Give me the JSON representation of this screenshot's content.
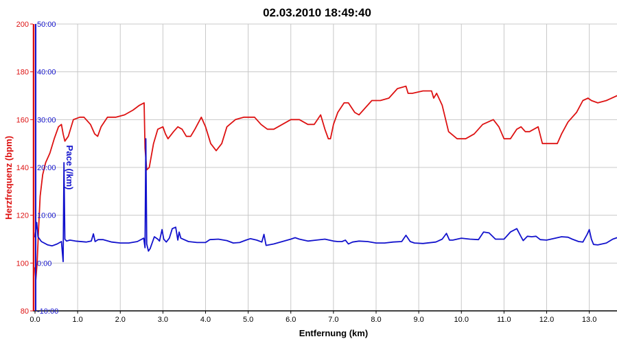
{
  "colors": {
    "heart_rate": "#dd1111",
    "pace": "#1111cc",
    "grid": "#c8c8c8",
    "axis": "#000000",
    "background": "#ffffff"
  },
  "chart_data": {
    "type": "line",
    "title": "02.03.2010 18:49:40",
    "xlabel": "Entfernung (km)",
    "xlim": [
      0,
      13.65
    ],
    "x_ticks": [
      "0.0",
      "1.0",
      "2.0",
      "3.0",
      "4.0",
      "5.0",
      "6.0",
      "7.0",
      "8.0",
      "9.0",
      "10.0",
      "11.0",
      "12.0",
      "13.0"
    ],
    "grid": true,
    "y_axes": [
      {
        "id": "hr",
        "label": "Herzfrequenz (bpm)",
        "lim": [
          80,
          200
        ],
        "ticks": [
          "200",
          "180",
          "160",
          "140",
          "120",
          "100",
          "80"
        ],
        "color": "#dd1111"
      },
      {
        "id": "pace",
        "label": "Pace (/km)",
        "lim": [
          -10,
          50
        ],
        "ticks": [
          "50:00",
          "40:00",
          "30:00",
          "20:00",
          "10:00",
          "0:00",
          "-10:00"
        ],
        "color": "#1111cc"
      }
    ],
    "series": [
      {
        "name": "Herzfrequenz (bpm)",
        "axis": "hr",
        "color": "#dd1111",
        "points": [
          [
            0.0,
            98
          ],
          [
            0.02,
            93
          ],
          [
            0.05,
            100
          ],
          [
            0.08,
            113
          ],
          [
            0.12,
            128
          ],
          [
            0.18,
            137
          ],
          [
            0.25,
            142
          ],
          [
            0.35,
            146
          ],
          [
            0.45,
            152
          ],
          [
            0.55,
            157
          ],
          [
            0.62,
            158
          ],
          [
            0.66,
            154
          ],
          [
            0.7,
            151
          ],
          [
            0.78,
            153
          ],
          [
            0.9,
            160
          ],
          [
            1.05,
            161
          ],
          [
            1.15,
            161
          ],
          [
            1.3,
            158
          ],
          [
            1.4,
            154
          ],
          [
            1.47,
            153
          ],
          [
            1.55,
            157
          ],
          [
            1.7,
            161
          ],
          [
            1.9,
            161
          ],
          [
            2.1,
            162
          ],
          [
            2.3,
            164
          ],
          [
            2.45,
            166
          ],
          [
            2.56,
            167
          ],
          [
            2.58,
            148
          ],
          [
            2.62,
            139
          ],
          [
            2.68,
            140
          ],
          [
            2.78,
            150
          ],
          [
            2.88,
            156
          ],
          [
            3.0,
            157
          ],
          [
            3.06,
            154
          ],
          [
            3.12,
            152
          ],
          [
            3.25,
            155
          ],
          [
            3.35,
            157
          ],
          [
            3.45,
            156
          ],
          [
            3.55,
            153
          ],
          [
            3.65,
            153
          ],
          [
            3.75,
            156
          ],
          [
            3.9,
            161
          ],
          [
            4.0,
            157
          ],
          [
            4.12,
            150
          ],
          [
            4.25,
            147
          ],
          [
            4.38,
            150
          ],
          [
            4.5,
            157
          ],
          [
            4.7,
            160
          ],
          [
            4.9,
            161
          ],
          [
            5.15,
            161
          ],
          [
            5.3,
            158
          ],
          [
            5.45,
            156
          ],
          [
            5.6,
            156
          ],
          [
            5.8,
            158
          ],
          [
            6.0,
            160
          ],
          [
            6.2,
            160
          ],
          [
            6.4,
            158
          ],
          [
            6.55,
            158
          ],
          [
            6.7,
            162
          ],
          [
            6.8,
            156
          ],
          [
            6.88,
            152
          ],
          [
            6.93,
            152
          ],
          [
            7.0,
            158
          ],
          [
            7.1,
            163
          ],
          [
            7.25,
            167
          ],
          [
            7.35,
            167
          ],
          [
            7.5,
            163
          ],
          [
            7.6,
            162
          ],
          [
            7.75,
            165
          ],
          [
            7.9,
            168
          ],
          [
            8.1,
            168
          ],
          [
            8.3,
            169
          ],
          [
            8.5,
            173
          ],
          [
            8.7,
            174
          ],
          [
            8.75,
            171
          ],
          [
            8.85,
            171
          ],
          [
            9.1,
            172
          ],
          [
            9.3,
            172
          ],
          [
            9.35,
            169
          ],
          [
            9.42,
            171
          ],
          [
            9.55,
            166
          ],
          [
            9.7,
            155
          ],
          [
            9.9,
            152
          ],
          [
            10.1,
            152
          ],
          [
            10.3,
            154
          ],
          [
            10.5,
            158
          ],
          [
            10.75,
            160
          ],
          [
            10.88,
            157
          ],
          [
            11.0,
            152
          ],
          [
            11.15,
            152
          ],
          [
            11.3,
            156
          ],
          [
            11.4,
            157
          ],
          [
            11.5,
            155
          ],
          [
            11.6,
            155
          ],
          [
            11.8,
            157
          ],
          [
            11.9,
            150
          ],
          [
            12.1,
            150
          ],
          [
            12.25,
            150
          ],
          [
            12.35,
            154
          ],
          [
            12.5,
            159
          ],
          [
            12.7,
            163
          ],
          [
            12.85,
            168
          ],
          [
            12.97,
            169
          ],
          [
            13.05,
            168
          ],
          [
            13.2,
            167
          ],
          [
            13.4,
            168
          ],
          [
            13.65,
            170
          ]
        ]
      },
      {
        "name": "Pace (/km)",
        "axis": "pace",
        "color": "#1111cc",
        "points": [
          [
            0.0,
            5.5
          ],
          [
            0.04,
            8.5
          ],
          [
            0.07,
            5.5
          ],
          [
            0.15,
            4.5
          ],
          [
            0.3,
            3.8
          ],
          [
            0.4,
            3.6
          ],
          [
            0.52,
            4.0
          ],
          [
            0.62,
            4.5
          ],
          [
            0.66,
            0.3
          ],
          [
            0.68,
            21
          ],
          [
            0.7,
            5
          ],
          [
            0.74,
            4.6
          ],
          [
            0.82,
            4.8
          ],
          [
            0.95,
            4.6
          ],
          [
            1.2,
            4.4
          ],
          [
            1.32,
            4.6
          ],
          [
            1.37,
            6.1
          ],
          [
            1.41,
            4.5
          ],
          [
            1.48,
            4.9
          ],
          [
            1.6,
            4.9
          ],
          [
            1.8,
            4.4
          ],
          [
            2.0,
            4.2
          ],
          [
            2.2,
            4.2
          ],
          [
            2.4,
            4.5
          ],
          [
            2.55,
            5.2
          ],
          [
            2.58,
            3.2
          ],
          [
            2.6,
            26
          ],
          [
            2.62,
            4
          ],
          [
            2.66,
            2.5
          ],
          [
            2.7,
            3.0
          ],
          [
            2.8,
            5.5
          ],
          [
            2.88,
            5.0
          ],
          [
            2.92,
            4.6
          ],
          [
            2.98,
            7.0
          ],
          [
            3.02,
            5.0
          ],
          [
            3.08,
            4.4
          ],
          [
            3.15,
            5.2
          ],
          [
            3.22,
            7.2
          ],
          [
            3.3,
            7.5
          ],
          [
            3.35,
            4.8
          ],
          [
            3.38,
            6.5
          ],
          [
            3.42,
            5.2
          ],
          [
            3.6,
            4.5
          ],
          [
            3.8,
            4.3
          ],
          [
            4.0,
            4.3
          ],
          [
            4.1,
            4.9
          ],
          [
            4.3,
            5.0
          ],
          [
            4.5,
            4.7
          ],
          [
            4.65,
            4.2
          ],
          [
            4.8,
            4.3
          ],
          [
            4.95,
            4.8
          ],
          [
            5.05,
            5.1
          ],
          [
            5.2,
            4.8
          ],
          [
            5.32,
            4.4
          ],
          [
            5.37,
            6.0
          ],
          [
            5.42,
            3.7
          ],
          [
            5.6,
            4.0
          ],
          [
            5.8,
            4.5
          ],
          [
            6.0,
            5.0
          ],
          [
            6.1,
            5.3
          ],
          [
            6.2,
            5.0
          ],
          [
            6.4,
            4.6
          ],
          [
            6.6,
            4.8
          ],
          [
            6.8,
            5.0
          ],
          [
            7.0,
            4.6
          ],
          [
            7.1,
            4.5
          ],
          [
            7.2,
            4.5
          ],
          [
            7.28,
            4.8
          ],
          [
            7.35,
            4.0
          ],
          [
            7.45,
            4.4
          ],
          [
            7.6,
            4.6
          ],
          [
            7.8,
            4.5
          ],
          [
            8.0,
            4.2
          ],
          [
            8.2,
            4.2
          ],
          [
            8.4,
            4.4
          ],
          [
            8.6,
            4.5
          ],
          [
            8.7,
            5.8
          ],
          [
            8.8,
            4.5
          ],
          [
            8.9,
            4.2
          ],
          [
            9.1,
            4.1
          ],
          [
            9.4,
            4.4
          ],
          [
            9.55,
            5.0
          ],
          [
            9.65,
            6.2
          ],
          [
            9.72,
            4.8
          ],
          [
            9.8,
            4.8
          ],
          [
            10.0,
            5.2
          ],
          [
            10.2,
            5.0
          ],
          [
            10.4,
            4.9
          ],
          [
            10.52,
            6.5
          ],
          [
            10.65,
            6.3
          ],
          [
            10.8,
            5.0
          ],
          [
            11.0,
            5.0
          ],
          [
            11.15,
            6.5
          ],
          [
            11.3,
            7.2
          ],
          [
            11.4,
            5.5
          ],
          [
            11.45,
            4.7
          ],
          [
            11.55,
            5.6
          ],
          [
            11.65,
            5.5
          ],
          [
            11.75,
            5.6
          ],
          [
            11.85,
            4.9
          ],
          [
            12.0,
            4.8
          ],
          [
            12.2,
            5.2
          ],
          [
            12.35,
            5.5
          ],
          [
            12.5,
            5.4
          ],
          [
            12.6,
            5.0
          ],
          [
            12.75,
            4.5
          ],
          [
            12.85,
            4.4
          ],
          [
            12.95,
            6.0
          ],
          [
            13.0,
            7.0
          ],
          [
            13.05,
            5.0
          ],
          [
            13.1,
            3.9
          ],
          [
            13.2,
            3.8
          ],
          [
            13.4,
            4.2
          ],
          [
            13.55,
            5.0
          ],
          [
            13.65,
            5.3
          ]
        ]
      }
    ]
  }
}
